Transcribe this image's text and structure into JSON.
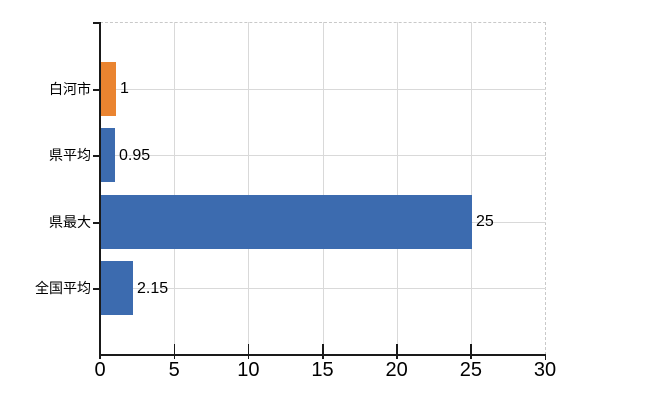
{
  "chart_data": {
    "type": "bar",
    "orientation": "horizontal",
    "title": "",
    "categories": [
      "白河市",
      "県平均",
      "県最大",
      "全国平均"
    ],
    "values": [
      1,
      0.95,
      25,
      2.15
    ],
    "value_labels": [
      "1",
      "0.95",
      "25",
      "2.15"
    ],
    "bar_colors": [
      "#EA8430",
      "#3C6BAF",
      "#3C6BAF",
      "#3C6BAF"
    ],
    "xlim": [
      0,
      30
    ],
    "x_tick_values": [
      0,
      5,
      10,
      15,
      20,
      25,
      30
    ],
    "x_ticks": [
      "0",
      "5",
      "10",
      "15",
      "20",
      "25",
      "30"
    ],
    "grid": true,
    "legend": false,
    "xlabel": "",
    "ylabel": ""
  },
  "colors": {
    "background": "#FFFFFF",
    "highlight_bar": "#EA8430",
    "default_bar": "#3C6BAF",
    "axis": "#1A1A1A",
    "gridline": "#D9D9D9",
    "dashed_border": "#C9C9C9",
    "text": "#000000"
  }
}
